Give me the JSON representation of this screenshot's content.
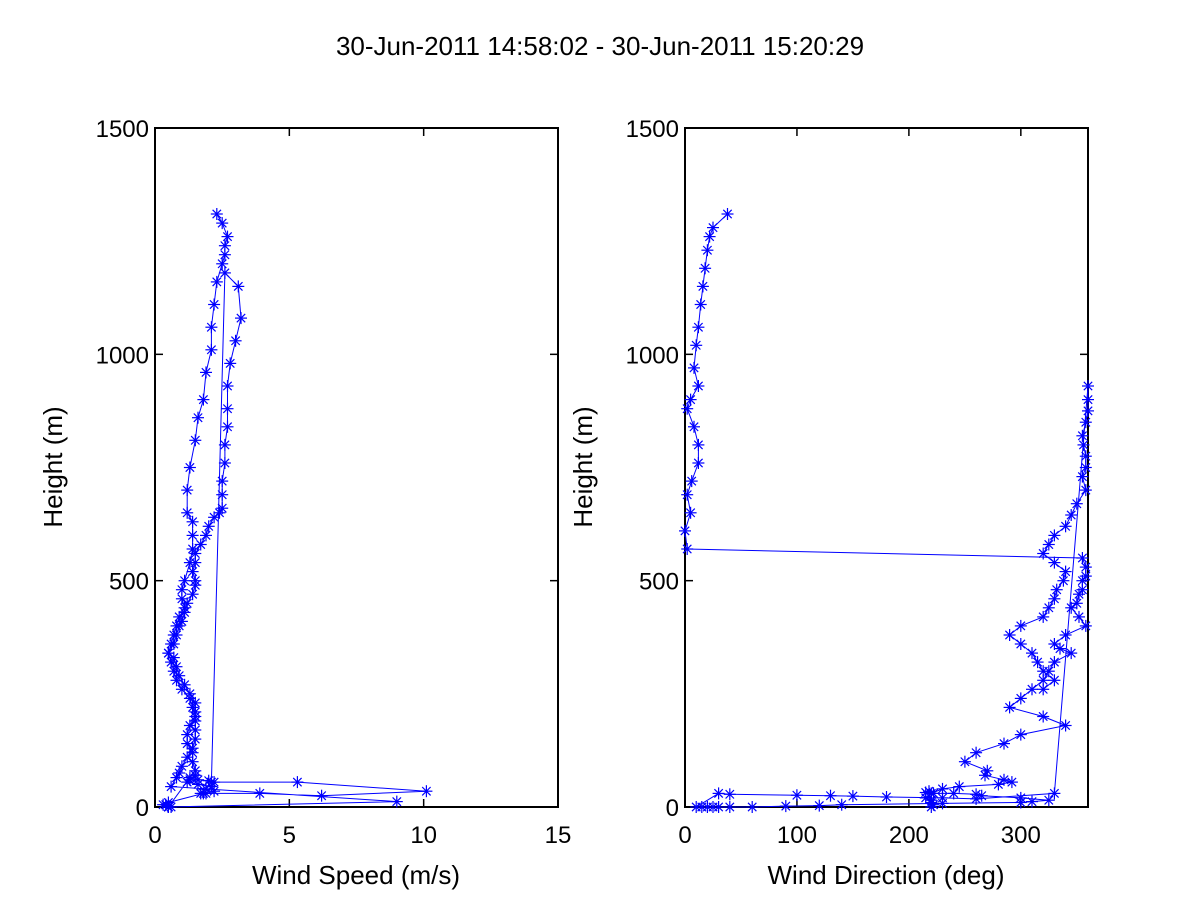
{
  "figure": {
    "title": "30-Jun-2011 14:58:02 - 30-Jun-2011 15:20:29"
  },
  "chart_data": [
    {
      "type": "line",
      "marker": "asterisk",
      "series_color": "#0000ff",
      "xlabel": "Wind Speed (m/s)",
      "ylabel": "Height (m)",
      "xlim": [
        0,
        15
      ],
      "ylim": [
        0,
        1500
      ],
      "xticks": [
        0,
        5,
        10,
        15
      ],
      "yticks": [
        0,
        500,
        1000,
        1500
      ],
      "grid": false,
      "series": [
        {
          "x": [
            2.3,
            2.5,
            2.7,
            2.6,
            2.6,
            2.5,
            2.3,
            2.2,
            2.1,
            2.1,
            1.9,
            1.8,
            1.6,
            1.5,
            1.3,
            1.2,
            1.2,
            1.4,
            1.4,
            1.4,
            1.3,
            1.1,
            1.0,
            1.0,
            1.1,
            0.9,
            0.8,
            0.7,
            0.6,
            0.5,
            0.6,
            0.7,
            0.8,
            1.0,
            1.3,
            1.4,
            1.5,
            1.3,
            1.2,
            1.2,
            1.4,
            1.4,
            1.5,
            1.5,
            1.3,
            1.2,
            1.6,
            2.1,
            2.2,
            1.9,
            1.8,
            0.5,
            0.3,
            0.4,
            0.5,
            0.5,
            0.5,
            0.5,
            0.6,
            0.5,
            1.3,
            1.6,
            2.0,
            2.2,
            5.3,
            10.1,
            6.2,
            3.9,
            1.7,
            1.9,
            2.1,
            2.6,
            3.1,
            3.2,
            3.0,
            2.8,
            2.7,
            2.7,
            2.7,
            2.6,
            2.6,
            2.5,
            2.5,
            2.5,
            2.4,
            2.2,
            2.0,
            1.9,
            1.7,
            1.5,
            1.5,
            1.4,
            1.5,
            1.5,
            1.4,
            1.2,
            1.1,
            1.0,
            0.9,
            0.8,
            0.7,
            0.5,
            0.7,
            0.8,
            0.9,
            1.1,
            1.3,
            1.5,
            1.5,
            1.5,
            1.5,
            1.5,
            1.4,
            1.2,
            1.0,
            0.9,
            0.8,
            0.6,
            9.0,
            0.5
          ],
          "y": [
            1310,
            1290,
            1260,
            1240,
            1220,
            1200,
            1160,
            1110,
            1060,
            1010,
            960,
            900,
            860,
            810,
            750,
            700,
            650,
            630,
            600,
            570,
            540,
            500,
            480,
            460,
            440,
            420,
            400,
            380,
            360,
            340,
            320,
            300,
            280,
            260,
            240,
            220,
            200,
            180,
            160,
            140,
            120,
            100,
            80,
            70,
            60,
            55,
            50,
            45,
            35,
            30,
            30,
            10,
            5,
            5,
            0,
            0,
            0,
            0,
            0,
            0,
            65,
            60,
            58,
            55,
            55,
            35,
            25,
            30,
            30,
            40,
            55,
            1180,
            1150,
            1080,
            1030,
            980,
            930,
            880,
            840,
            800,
            760,
            720,
            690,
            660,
            650,
            640,
            620,
            600,
            580,
            560,
            540,
            520,
            500,
            490,
            470,
            450,
            430,
            410,
            400,
            380,
            360,
            340,
            330,
            310,
            290,
            270,
            250,
            230,
            210,
            190,
            170,
            150,
            130,
            110,
            90,
            75,
            65,
            45,
            12,
            0
          ],
          "note": "rendered order reproduces the out-and-back profile"
        }
      ]
    },
    {
      "type": "line",
      "marker": "asterisk",
      "series_color": "#0000ff",
      "xlabel": "Wind Direction (deg)",
      "ylabel": "Height (m)",
      "xlim": [
        0,
        360
      ],
      "ylim": [
        0,
        1500
      ],
      "xticks": [
        0,
        100,
        200,
        300
      ],
      "yticks": [
        0,
        500,
        1000,
        1500
      ],
      "grid": false,
      "series": [
        {
          "x": [
            38,
            25,
            22,
            20,
            18,
            16,
            14,
            12,
            10,
            8,
            12,
            5,
            2,
            8,
            12,
            12,
            6,
            2,
            5,
            0,
            2,
            355,
            358,
            358,
            355,
            355,
            352,
            350,
            345,
            352,
            358,
            340,
            330,
            335,
            345,
            330,
            325,
            320,
            310,
            300,
            290,
            320,
            340,
            300,
            285,
            260,
            250,
            270,
            268,
            285,
            292,
            280,
            245,
            230,
            220,
            215,
            220,
            220,
            222,
            220,
            218,
            215,
            222,
            240,
            260,
            265,
            300,
            325,
            310,
            300,
            230,
            140,
            120,
            90,
            60,
            40,
            30,
            25,
            20,
            15,
            10,
            30,
            40,
            100,
            130,
            150,
            180,
            230,
            260,
            330,
            360,
            360,
            360,
            358,
            355,
            356,
            358,
            358,
            355,
            358,
            350,
            345,
            340,
            330,
            325,
            320,
            330,
            340,
            338,
            332,
            330,
            325,
            320,
            300,
            290,
            300,
            310,
            315,
            320,
            330,
            320
          ],
          "y": [
            1310,
            1280,
            1260,
            1230,
            1190,
            1150,
            1110,
            1060,
            1020,
            970,
            930,
            900,
            880,
            840,
            800,
            760,
            720,
            690,
            650,
            610,
            570,
            550,
            530,
            510,
            500,
            480,
            470,
            450,
            440,
            420,
            400,
            380,
            360,
            350,
            340,
            320,
            300,
            280,
            260,
            240,
            220,
            200,
            180,
            160,
            140,
            120,
            100,
            80,
            70,
            60,
            55,
            50,
            45,
            40,
            30,
            20,
            15,
            10,
            5,
            0,
            35,
            32,
            30,
            30,
            28,
            25,
            20,
            15,
            12,
            10,
            8,
            5,
            3,
            2,
            0,
            0,
            0,
            0,
            0,
            0,
            0,
            30,
            28,
            26,
            25,
            24,
            22,
            20,
            18,
            30,
            930,
            900,
            875,
            850,
            820,
            800,
            775,
            750,
            730,
            700,
            670,
            645,
            620,
            600,
            580,
            560,
            540,
            520,
            500,
            480,
            460,
            440,
            420,
            400,
            380,
            360,
            340,
            320,
            300,
            280,
            260
          ],
          "note": "wraps across 0/360 deg produce long horizontal segments"
        }
      ]
    }
  ]
}
